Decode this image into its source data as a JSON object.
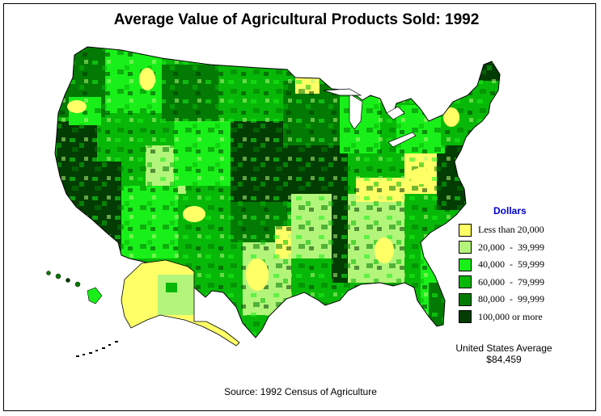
{
  "title": "Average Value of Agricultural Products Sold:  1992",
  "legend": {
    "title": "Dollars",
    "items": [
      {
        "label": "Less than 20,000",
        "color": "#ffff66"
      },
      {
        "label": "20,000  -  39,999",
        "color": "#b3f57a"
      },
      {
        "label": "40,000  -  59,999",
        "color": "#19f019"
      },
      {
        "label": "60,000  -  79,999",
        "color": "#08b808"
      },
      {
        "label": "80,000  -  99,999",
        "color": "#037a03"
      },
      {
        "label": "100,000 or more",
        "color": "#033d03"
      }
    ]
  },
  "average": {
    "label": "United States Average",
    "value": "$84,459"
  },
  "source": "Source:  1992 Census of Agriculture"
}
